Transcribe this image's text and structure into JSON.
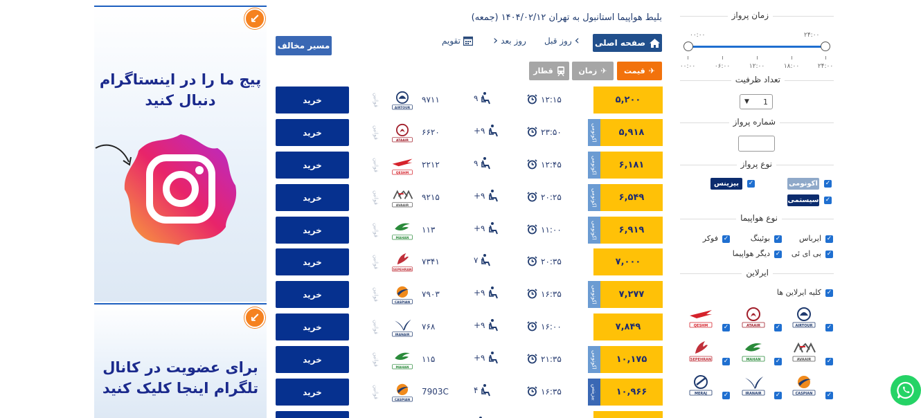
{
  "ads": {
    "instagram": {
      "text_line1": "پیج ما را  در اینستاگرام",
      "text_line2": "دنبال کنید"
    },
    "telegram": {
      "text_line1": "برای عضویت در کانال",
      "text_line2": "تلگرام اینجا کلیک کنید"
    },
    "arrow_icon": "arrow-down-left-icon",
    "accent": "#f58220"
  },
  "header": {
    "title": "بلیط هواپیما استانبول به تهران ۱۴۰۴/۰۲/۱۲ (جمعه)",
    "home_label": "صفحه اصلی",
    "prev_day": "روز قبل",
    "next_day": "روز بعد",
    "calendar": "تقویم",
    "reverse": "مسیر مخالف"
  },
  "sort": {
    "price": "قیمت",
    "time": "زمان",
    "train": "قطار"
  },
  "colors": {
    "buy": "#06318f",
    "price": "#ffc107",
    "accent": "#f2720c",
    "economy": "#6b9bd2"
  },
  "flights": [
    {
      "price": "۵,۲۰۰",
      "class": "",
      "time": "۱۲:۱۵",
      "cap": "۹",
      "fno": "۹۷۱۱",
      "airline": "AIRTOUR",
      "vert": "قوانین",
      "buy": "خرید"
    },
    {
      "price": "۵,۹۱۸",
      "class": "اکونومی",
      "time": "۲۳:۵۰",
      "cap": "+۹",
      "fno": "۶۶۲۰",
      "airline": "ATAAIR",
      "vert": "قوانین",
      "buy": "خرید"
    },
    {
      "price": "۶,۱۸۱",
      "class": "اکونومی",
      "time": "۱۲:۴۵",
      "cap": "۹",
      "fno": "۲۲۱۲",
      "airline": "QESHM",
      "vert": "قوانین",
      "buy": "خرید"
    },
    {
      "price": "۶,۵۴۹",
      "class": "اکونومی",
      "time": "۲۰:۲۵",
      "cap": "+۹",
      "fno": "۹۲۱۵",
      "airline": "AVAAIR",
      "vert": "قوانین",
      "buy": "خرید"
    },
    {
      "price": "۶,۹۱۹",
      "class": "اکونومی",
      "time": "۱۱:۰۰",
      "cap": "+۹",
      "fno": "۱۱۳",
      "airline": "MAHAN",
      "vert": "قوانین",
      "buy": "خرید"
    },
    {
      "price": "۷,۰۰۰",
      "class": "",
      "time": "۲۰:۳۵",
      "cap": "۷",
      "fno": "۷۳۴۱",
      "airline": "SEPEHRAN",
      "vert": "قوانین",
      "buy": "خرید"
    },
    {
      "price": "۷,۲۷۷",
      "class": "اکونومی",
      "time": "۱۶:۳۵",
      "cap": "+۹",
      "fno": "۷۹۰۳",
      "airline": "CASPIAN",
      "vert": "قوانین",
      "buy": "خرید"
    },
    {
      "price": "۷,۸۴۹",
      "class": "",
      "time": "۱۶:۰۰",
      "cap": "+۹",
      "fno": "۷۶۸",
      "airline": "IRANAIR",
      "vert": "قوانین",
      "buy": "خرید"
    },
    {
      "price": "۱۰,۱۷۵",
      "class": "اکونومی",
      "time": "۲۱:۳۵",
      "cap": "+۹",
      "fno": "۱۱۵",
      "airline": "MAHAN",
      "vert": "قوانین",
      "buy": "خرید"
    },
    {
      "price": "۱۰,۹۶۶",
      "class": "بیزینس",
      "time": "۱۶:۳۵",
      "cap": "۴",
      "fno": "7903C",
      "airline": "CASPIAN",
      "vert": "قوانین",
      "buy": "خرید"
    },
    {
      "price": "",
      "class": "",
      "time": "",
      "cap": "",
      "fno": "",
      "airline": "",
      "vert": "",
      "buy": ""
    }
  ],
  "sidebar": {
    "flight_time": {
      "title": "زمان پرواز",
      "from_label": "۰۰:۰۰",
      "to_label": "۲۴:۰۰",
      "ticks": [
        "۰۰:۰۰",
        "۰۶:۰۰",
        "۱۲:۰۰",
        "۱۸:۰۰",
        "۲۴:۰۰"
      ]
    },
    "capacity": {
      "title": "تعداد ظرفیت",
      "value": "1"
    },
    "flight_number": {
      "title": "شماره پرواز",
      "placeholder": ""
    },
    "flight_type": {
      "title": "نوع پرواز",
      "economy": "اکونومی",
      "business": "بیزینس",
      "system": "سیستمی"
    },
    "aircraft": {
      "title": "نوع هواپیما",
      "airbus": "ایرباس",
      "boeing": "بوئینگ",
      "fokker": "فوکر",
      "bae": "بی ای ئی",
      "other": "دیگر هواپیما"
    },
    "airline": {
      "title": "ایرلاین",
      "all": "کلیه ایرلاین ها",
      "logos": [
        "AIRTOUR",
        "ATAAIR",
        "QESHM",
        "AVAAIR",
        "MAHAN",
        "SEPEHRAN",
        "CASPIAN",
        "IRANAIR",
        "MERAJ"
      ]
    }
  }
}
